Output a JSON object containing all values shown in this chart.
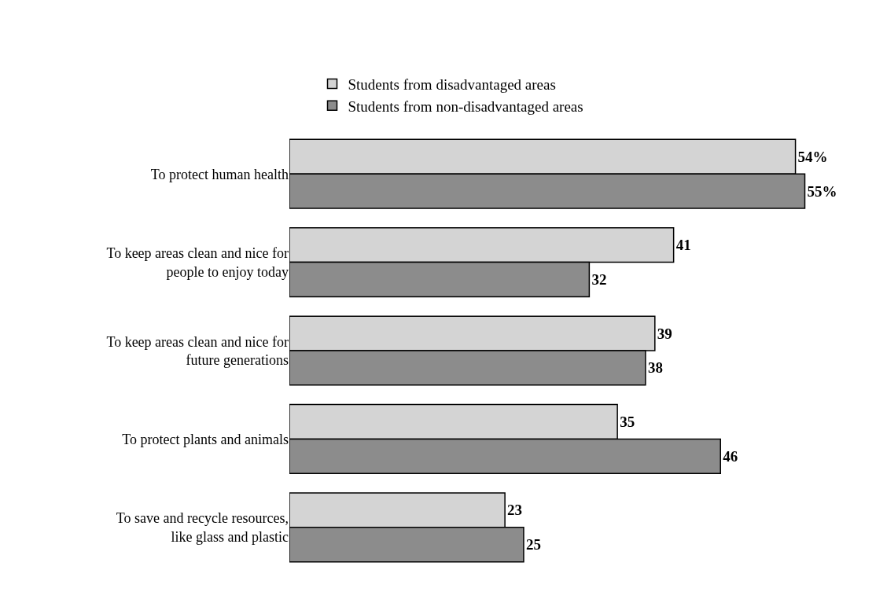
{
  "chart_data": {
    "type": "bar",
    "orientation": "horizontal",
    "legend": "top",
    "grid": false,
    "categories": [
      "To protect human health",
      "To keep areas clean and nice for people to enjoy today",
      "To keep areas clean and nice for future generations",
      "To protect plants and animals",
      "To save and recycle resources, like glass and plastic"
    ],
    "series": [
      {
        "name": "Students from disadvantaged areas",
        "color": "#d4d4d4",
        "values": [
          54,
          41,
          39,
          35,
          23
        ],
        "value_labels": [
          "54%",
          "41",
          "39",
          "35",
          "23"
        ]
      },
      {
        "name": "Students from non-disadvantaged areas",
        "color": "#8c8c8c",
        "values": [
          55,
          32,
          38,
          46,
          25
        ],
        "value_labels": [
          "55%",
          "32",
          "38",
          "46",
          "25"
        ]
      }
    ]
  }
}
